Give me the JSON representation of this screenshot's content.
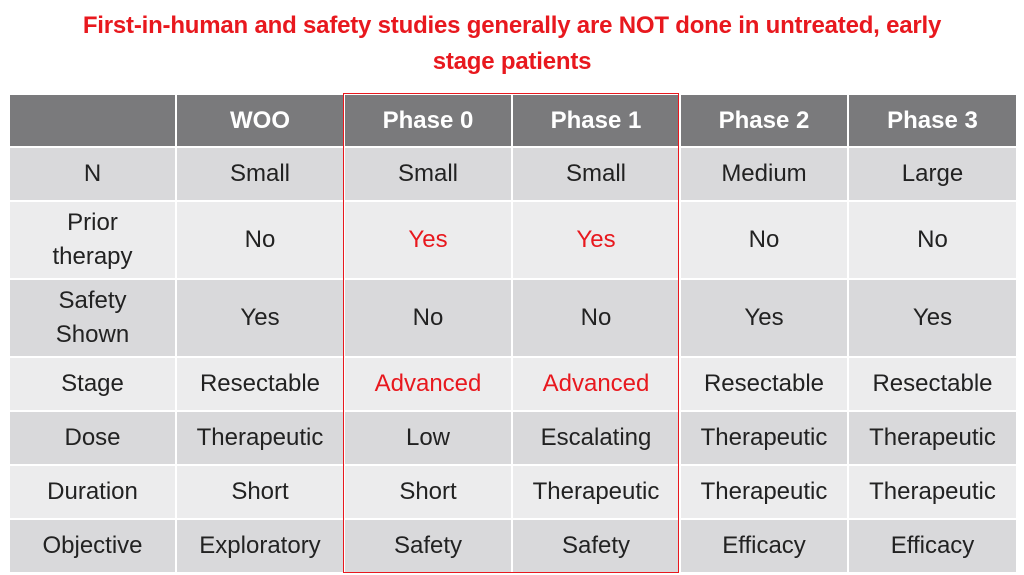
{
  "title": {
    "line1": "First-in-human and safety studies generally are NOT done in untreated, early",
    "line2": "stage patients"
  },
  "colors": {
    "accent": "#e8181e",
    "header_bg": "#7a7a7c",
    "row_dark": "#d9d9db",
    "row_light": "#ececed"
  },
  "table": {
    "headers": [
      "",
      "WOO",
      "Phase 0",
      "Phase 1",
      "Phase 2",
      "Phase 3"
    ],
    "rows": [
      {
        "label": "N",
        "cells": [
          "Small",
          "Small",
          "Small",
          "Medium",
          "Large"
        ]
      },
      {
        "label": "Prior therapy",
        "cells": [
          "No",
          "Yes",
          "Yes",
          "No",
          "No"
        ]
      },
      {
        "label": "Safety Shown",
        "cells": [
          "Yes",
          "No",
          "No",
          "Yes",
          "Yes"
        ]
      },
      {
        "label": "Stage",
        "cells": [
          "Resectable",
          "Advanced",
          "Advanced",
          "Resectable",
          "Resectable"
        ]
      },
      {
        "label": "Dose",
        "cells": [
          "Therapeutic",
          "Low",
          "Escalating",
          "Therapeutic",
          "Therapeutic"
        ]
      },
      {
        "label": "Duration",
        "cells": [
          "Short",
          "Short",
          "Therapeutic",
          "Therapeutic",
          "Therapeutic"
        ]
      },
      {
        "label": "Objective",
        "cells": [
          "Exploratory",
          "Safety",
          "Safety",
          "Efficacy",
          "Efficacy"
        ]
      }
    ]
  }
}
